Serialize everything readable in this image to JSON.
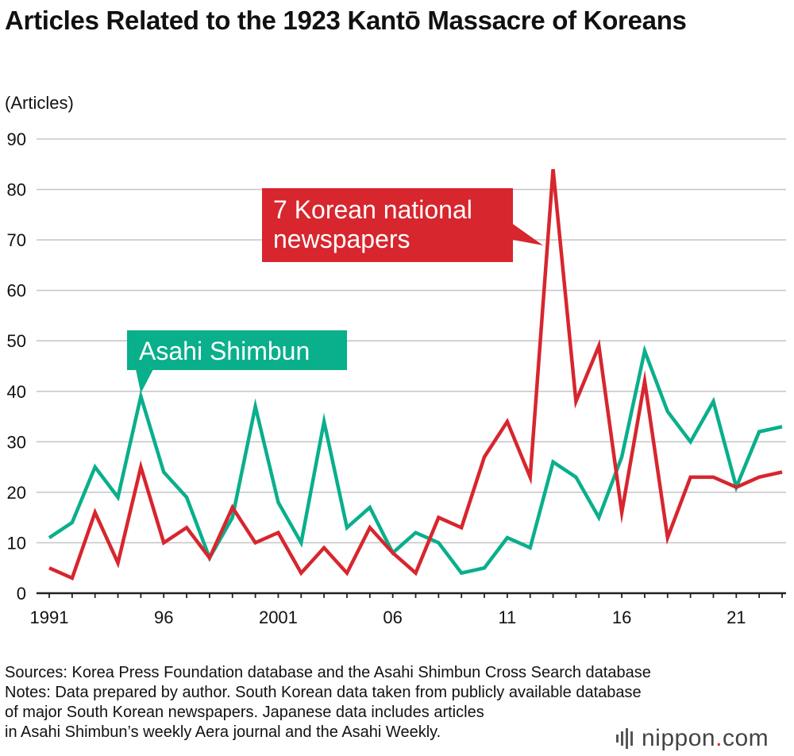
{
  "title": "Articles Related to the 1923 Kantō Massacre of Koreans",
  "unit_label": "(Articles)",
  "chart_data": {
    "type": "line",
    "title": "Articles Related to the 1923 Kantō Massacre of Koreans",
    "ylabel": "(Articles)",
    "ylim": [
      0,
      90
    ],
    "yticks": [
      0,
      10,
      20,
      30,
      40,
      50,
      60,
      70,
      80,
      90
    ],
    "x": [
      1991,
      1992,
      1993,
      1994,
      1995,
      1996,
      1997,
      1998,
      1999,
      2000,
      2001,
      2002,
      2003,
      2004,
      2005,
      2006,
      2007,
      2008,
      2009,
      2010,
      2011,
      2012,
      2013,
      2014,
      2015,
      2016,
      2017,
      2018,
      2019,
      2020,
      2021,
      2022,
      2023
    ],
    "xtick_values": [
      1991,
      1996,
      2001,
      2006,
      2011,
      2016,
      2021
    ],
    "xtick_labels": [
      "1991",
      "96",
      "2001",
      "06",
      "11",
      "16",
      "21"
    ],
    "grid": true,
    "series": [
      {
        "name": "Asahi Shimbun",
        "color": "#0aaf8c",
        "values": [
          11,
          14,
          25,
          19,
          39,
          24,
          19,
          7,
          15,
          37,
          18,
          10,
          34,
          13,
          17,
          8,
          12,
          10,
          4,
          5,
          11,
          9,
          26,
          23,
          15,
          27,
          48,
          36,
          30,
          38,
          21,
          32,
          33
        ]
      },
      {
        "name": "7 Korean national newspapers",
        "color": "#d7262e",
        "values": [
          5,
          3,
          16,
          6,
          25,
          10,
          13,
          7,
          17,
          10,
          12,
          4,
          9,
          4,
          13,
          8,
          4,
          15,
          13,
          27,
          34,
          23,
          84,
          38,
          49,
          16,
          42,
          11,
          23,
          23,
          21,
          23,
          24
        ]
      }
    ],
    "callouts": [
      {
        "label": "Asahi Shimbun",
        "series_index": 0,
        "point_x": 1995,
        "point_y": 39
      },
      {
        "label": "7 Korean national newspapers",
        "lines": [
          "7 Korean national",
          "newspapers"
        ],
        "series_index": 1,
        "point_x": 2013,
        "point_y": 84
      }
    ]
  },
  "notes": [
    "Sources: Korea Press Foundation database and the Asahi Shimbun Cross Search database",
    "Notes: Data prepared by author. South Korean data taken from publicly available database",
    "of major South Korean newspapers. Japanese data includes articles",
    "in Asahi Shimbun’s weekly Aera journal and the Asahi Weekly."
  ],
  "logo": {
    "word": "nippon",
    "dot": ".",
    "suffix": "com"
  }
}
